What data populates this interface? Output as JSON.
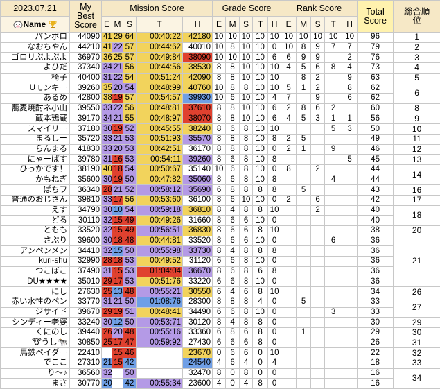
{
  "header": {
    "date": "2023.07.21",
    "name": "Name",
    "best": "My Best Score",
    "mission": "Mission Score",
    "grade": "Grade Score",
    "rank_score": "Rank Score",
    "total": "Total Score",
    "rank": "総合順位",
    "sub": [
      "E",
      "M",
      "S",
      "T",
      "H"
    ]
  },
  "grade_colors": {
    "10": "#f2d35c",
    "8": "#b49ae6",
    "6": "#e0412f",
    "4": "#6f9fe6"
  },
  "rows": [
    {
      "name": "パンポロ",
      "best": 44090,
      "mission": [
        41,
        29,
        64,
        "00:40:22",
        42180
      ],
      "grade": [
        10,
        10,
        10,
        10,
        10
      ],
      "rank_score": [
        10,
        10,
        10,
        10,
        10
      ],
      "total": 96,
      "rank": 1
    },
    {
      "name": "なおちやん",
      "best": 44210,
      "mission": [
        41,
        22,
        57,
        "00:44:62",
        40010
      ],
      "grade": [
        10,
        8,
        10,
        10,
        0
      ],
      "rank_score": [
        10,
        8,
        9,
        7,
        7
      ],
      "total": 79,
      "rank": 2
    },
    {
      "name": "ゴロリぷよぷよ",
      "best": 36970,
      "mission": [
        36,
        25,
        57,
        "00:49:84",
        38090
      ],
      "grade": [
        10,
        10,
        10,
        10,
        6
      ],
      "rank_score": [
        6,
        9,
        9,
        null,
        2
      ],
      "total": 76,
      "rank": 3
    },
    {
      "name": "よひだ",
      "best": 37340,
      "mission": [
        34,
        21,
        56,
        "00:44:56",
        38530
      ],
      "grade": [
        8,
        8,
        10,
        10,
        10
      ],
      "rank_score": [
        4,
        5,
        6,
        8,
        4
      ],
      "total": 73,
      "rank": 4
    },
    {
      "name": "椅子",
      "best": 40400,
      "mission": [
        31,
        22,
        54,
        "00:51:24",
        42090
      ],
      "grade": [
        8,
        8,
        10,
        10,
        10
      ],
      "rank_score": [
        null,
        8,
        2,
        null,
        9
      ],
      "total": 63,
      "rank": 5
    },
    {
      "name": "Uモンキー",
      "best": 39260,
      "mission": [
        35,
        20,
        54,
        "00:48:99",
        40760
      ],
      "grade": [
        10,
        8,
        8,
        10,
        10
      ],
      "rank_score": [
        5,
        1,
        2,
        null,
        8
      ],
      "total": 62,
      "rank": 6
    },
    {
      "name": "あるめ",
      "best": 42800,
      "mission": [
        38,
        19,
        57,
        "00:54:57",
        39930
      ],
      "grade": [
        10,
        6,
        10,
        10,
        4
      ],
      "rank_score": [
        7,
        null,
        9,
        null,
        6
      ],
      "total": 62,
      "rank": null
    },
    {
      "name": "蕎麦焼酎ネ小山",
      "best": 39550,
      "mission": [
        33,
        22,
        56,
        "00:48:81",
        37610
      ],
      "grade": [
        8,
        8,
        10,
        10,
        6
      ],
      "rank_score": [
        2,
        8,
        6,
        2,
        null
      ],
      "total": 60,
      "rank": 8
    },
    {
      "name": "蔵本鶏蔵",
      "best": 39170,
      "mission": [
        34,
        21,
        55,
        "00:48:97",
        38070
      ],
      "grade": [
        8,
        8,
        10,
        10,
        6
      ],
      "rank_score": [
        4,
        5,
        3,
        1,
        1
      ],
      "total": 56,
      "rank": 9
    },
    {
      "name": "スマイリー",
      "best": 37180,
      "mission": [
        30,
        19,
        52,
        "00:45:55",
        38240
      ],
      "grade": [
        8,
        6,
        8,
        10,
        10
      ],
      "rank_score": [
        null,
        null,
        null,
        5,
        3
      ],
      "total": 50,
      "rank": 10
    },
    {
      "name": "まるしー",
      "best": 35720,
      "mission": [
        33,
        21,
        53,
        "00:51:93",
        35570
      ],
      "grade": [
        8,
        8,
        8,
        10,
        8
      ],
      "rank_score": [
        2,
        5,
        null,
        null,
        null
      ],
      "total": 49,
      "rank": 11
    },
    {
      "name": "らんまる",
      "best": 41830,
      "mission": [
        33,
        20,
        53,
        "00:42:51",
        36170
      ],
      "grade": [
        8,
        8,
        8,
        10,
        0
      ],
      "rank_score": [
        2,
        1,
        null,
        9,
        null
      ],
      "total": 46,
      "rank": 12
    },
    {
      "name": "にゃーぱす",
      "best": 39780,
      "mission": [
        31,
        16,
        53,
        "00:54:11",
        39260
      ],
      "grade": [
        8,
        6,
        8,
        10,
        8
      ],
      "rank_score": [
        null,
        null,
        null,
        null,
        5
      ],
      "total": 45,
      "rank": 13
    },
    {
      "name": "ひっかです！",
      "best": 38190,
      "mission": [
        40,
        18,
        54,
        "00:50:67",
        35140
      ],
      "grade": [
        10,
        6,
        8,
        10,
        0
      ],
      "rank_score": [
        8,
        null,
        2,
        null,
        null
      ],
      "total": 44,
      "rank": 14
    },
    {
      "name": "かもねぎ",
      "best": 35600,
      "mission": [
        30,
        19,
        50,
        "00:47:82",
        35060
      ],
      "grade": [
        8,
        6,
        8,
        10,
        8
      ],
      "rank_score": [
        null,
        null,
        null,
        4,
        null
      ],
      "total": 44,
      "rank": null
    },
    {
      "name": "ぱちヲ",
      "best": 36340,
      "mission": [
        28,
        21,
        52,
        "00:58:12",
        35690
      ],
      "grade": [
        6,
        8,
        8,
        8,
        8
      ],
      "rank_score": [
        null,
        5,
        null,
        null,
        null
      ],
      "total": 43,
      "rank": 16
    },
    {
      "name": "普通のおじさん",
      "best": 39810,
      "mission": [
        33,
        17,
        56,
        "00:53:60",
        36100
      ],
      "grade": [
        8,
        6,
        10,
        10,
        0
      ],
      "rank_score": [
        2,
        null,
        6,
        null,
        null
      ],
      "total": 42,
      "rank": 17
    },
    {
      "name": "えす",
      "best": 34790,
      "mission": [
        30,
        10,
        54,
        "00:59:18",
        36810
      ],
      "grade": [
        8,
        4,
        8,
        8,
        10
      ],
      "rank_score": [
        null,
        null,
        2,
        null,
        null
      ],
      "total": 40,
      "rank": 18
    },
    {
      "name": "どる",
      "best": 30110,
      "mission": [
        32,
        15,
        49,
        "00:49:26",
        31660
      ],
      "grade": [
        8,
        6,
        6,
        10,
        0
      ],
      "rank_score": [
        null,
        null,
        null,
        null,
        null
      ],
      "total": 40,
      "rank": null
    },
    {
      "name": "ともも",
      "best": 33520,
      "mission": [
        32,
        15,
        49,
        "00:56:51",
        36830
      ],
      "grade": [
        8,
        6,
        6,
        8,
        10
      ],
      "rank_score": [
        null,
        null,
        null,
        null,
        null
      ],
      "total": 38,
      "rank": 20
    },
    {
      "name": "さぶり",
      "best": 39600,
      "mission": [
        30,
        18,
        48,
        "00:44:81",
        33520
      ],
      "grade": [
        8,
        6,
        6,
        10,
        0
      ],
      "rank_score": [
        null,
        null,
        null,
        6,
        null
      ],
      "total": 36,
      "rank": 21
    },
    {
      "name": "アンペンメン",
      "best": 34410,
      "mission": [
        32,
        15,
        50,
        "00:55:98",
        33730
      ],
      "grade": [
        8,
        4,
        8,
        8,
        8
      ],
      "rank_score": [
        null,
        null,
        null,
        null,
        null
      ],
      "total": 36,
      "rank": null
    },
    {
      "name": "kuri-shu",
      "best": 32990,
      "mission": [
        28,
        18,
        53,
        "00:49:52",
        31120
      ],
      "grade": [
        6,
        6,
        8,
        10,
        0
      ],
      "rank_score": [
        null,
        null,
        null,
        null,
        null
      ],
      "total": 36,
      "rank": null
    },
    {
      "name": "つこぼこ",
      "best": 37490,
      "mission": [
        31,
        15,
        53,
        "01:04:04",
        36670
      ],
      "grade": [
        8,
        6,
        8,
        6,
        8
      ],
      "rank_score": [
        null,
        null,
        null,
        null,
        null
      ],
      "total": 36,
      "rank": null
    },
    {
      "name": "DU★★★★",
      "best": 35010,
      "mission": [
        29,
        17,
        53,
        "00:51:76",
        33220
      ],
      "grade": [
        6,
        6,
        8,
        10,
        0
      ],
      "rank_score": [
        null,
        null,
        null,
        null,
        null
      ],
      "total": 36,
      "rank": null
    },
    {
      "name": "にし",
      "best": 27630,
      "mission": [
        25,
        13,
        48,
        "00:55:21",
        30550
      ],
      "grade": [
        6,
        4,
        6,
        8,
        10
      ],
      "rank_score": [
        null,
        null,
        null,
        null,
        null
      ],
      "total": 34,
      "rank": 26
    },
    {
      "name": "赤い水性のペン",
      "best": 33770,
      "mission": [
        31,
        21,
        50,
        "01:08:76",
        28300
      ],
      "grade": [
        8,
        8,
        8,
        4,
        0
      ],
      "rank_score": [
        null,
        5,
        null,
        null,
        null
      ],
      "total": 33,
      "rank": 27
    },
    {
      "name": "ジサイド",
      "best": 39670,
      "mission": [
        29,
        19,
        51,
        "00:48:41",
        34490
      ],
      "grade": [
        6,
        6,
        8,
        10,
        0
      ],
      "rank_score": [
        null,
        null,
        null,
        3,
        null
      ],
      "total": 33,
      "rank": null
    },
    {
      "name": "シンディー老婆",
      "best": 33240,
      "mission": [
        30,
        12,
        50,
        "00:53:71",
        30120
      ],
      "grade": [
        8,
        4,
        8,
        8,
        0
      ],
      "rank_score": [
        null,
        null,
        null,
        null,
        null
      ],
      "total": 30,
      "rank": 29
    },
    {
      "name": "くにのし",
      "best": 39440,
      "mission": [
        26,
        20,
        48,
        "00:55:16",
        33360
      ],
      "grade": [
        6,
        8,
        6,
        8,
        0
      ],
      "rank_score": [
        null,
        1,
        null,
        null,
        null
      ],
      "total": 29,
      "rank": 30
    },
    {
      "name": "🐮うし🐄",
      "best": 30850,
      "mission": [
        25,
        17,
        47,
        "00:59:92",
        27430
      ],
      "grade": [
        6,
        6,
        6,
        8,
        0
      ],
      "rank_score": [
        null,
        null,
        null,
        null,
        null
      ],
      "total": 26,
      "rank": 31
    },
    {
      "name": "馬鉄ベイダー",
      "best": 22410,
      "mission": [
        null,
        15,
        46,
        null,
        23670
      ],
      "grade": [
        0,
        6,
        6,
        0,
        10
      ],
      "rank_score": [
        null,
        null,
        null,
        null,
        null
      ],
      "total": 22,
      "rank": 32
    },
    {
      "name": "でここ",
      "best": 27310,
      "mission": [
        21,
        15,
        42,
        null,
        24540
      ],
      "grade": [
        4,
        6,
        4,
        0,
        4
      ],
      "rank_score": [
        null,
        null,
        null,
        null,
        null
      ],
      "total": 18,
      "rank": 33
    },
    {
      "name": "り〜♪",
      "best": 36560,
      "mission": [
        32,
        null,
        50,
        null,
        32470
      ],
      "grade": [
        8,
        0,
        8,
        0,
        0
      ],
      "rank_score": [
        null,
        null,
        null,
        null,
        null
      ],
      "total": 16,
      "rank": 34
    },
    {
      "name": "まさ",
      "best": 30770,
      "mission": [
        20,
        null,
        42,
        "00:55:34",
        23600
      ],
      "grade": [
        4,
        0,
        4,
        8,
        0
      ],
      "rank_score": [
        null,
        null,
        null,
        null,
        null
      ],
      "total": 16,
      "rank": null
    }
  ]
}
